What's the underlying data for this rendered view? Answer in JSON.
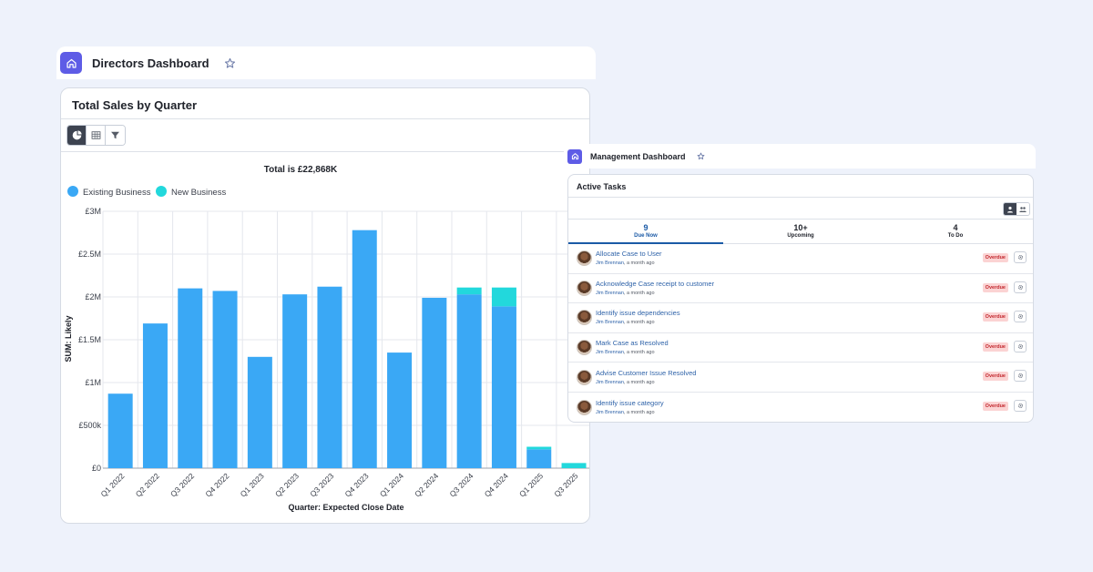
{
  "directors": {
    "title": "Directors Dashboard",
    "card_title": "Total Sales by Quarter",
    "total_text": "Total is £22,868K"
  },
  "management": {
    "title": "Management Dashboard",
    "card_title": "Active Tasks",
    "tabs": [
      {
        "count": "9",
        "label": "Due Now"
      },
      {
        "count": "10+",
        "label": "Upcoming"
      },
      {
        "count": "4",
        "label": "To Do"
      }
    ],
    "tasks": [
      {
        "name": "Allocate Case to User",
        "user": "Jim Brennan",
        "time": ", a month ago",
        "status": "Overdue"
      },
      {
        "name": "Acknowledge Case receipt to customer",
        "user": "Jim Brennan",
        "time": ", a month ago",
        "status": "Overdue"
      },
      {
        "name": "Identify issue dependencies",
        "user": "Jim Brennan",
        "time": ", a month ago",
        "status": "Overdue"
      },
      {
        "name": "Mark Case as Resolved",
        "user": "Jim Brennan",
        "time": ", a month ago",
        "status": "Overdue"
      },
      {
        "name": "Advise Customer Issue Resolved",
        "user": "Jim Brennan",
        "time": ", a month ago",
        "status": "Overdue"
      },
      {
        "name": "Identify issue category",
        "user": "Jim Brennan",
        "time": ", a month ago",
        "status": "Overdue"
      }
    ]
  },
  "colors": {
    "accent": "#5e5ce6",
    "existing_business": "#3aa8f5",
    "new_business": "#22d8dc",
    "overdue_bg": "#fbd3d3",
    "overdue_text": "#c2272d",
    "link": "#2f63a9"
  },
  "icons": [
    "home-icon",
    "star-icon",
    "pie-chart-icon",
    "table-icon",
    "filter-icon",
    "user-icon",
    "group-icon",
    "gear-icon"
  ],
  "chart_data": {
    "type": "bar",
    "stacked": true,
    "title": "Total is £22,868K",
    "xlabel": "Quarter: Expected Close Date",
    "ylabel": "SUM: Likely",
    "categories": [
      "Q1 2022",
      "Q2 2022",
      "Q3 2022",
      "Q4 2022",
      "Q1 2023",
      "Q2 2023",
      "Q3 2023",
      "Q4 2023",
      "Q1 2024",
      "Q2 2024",
      "Q3 2024",
      "Q4 2024",
      "Q1 2025",
      "Q3 2025"
    ],
    "series": [
      {
        "name": "Existing Business",
        "values": [
          870000,
          1690000,
          2100000,
          2070000,
          1300000,
          2030000,
          2120000,
          2780000,
          1350000,
          1990000,
          2030000,
          1890000,
          220000,
          0
        ]
      },
      {
        "name": "New Business",
        "values": [
          0,
          0,
          0,
          0,
          0,
          0,
          0,
          0,
          0,
          0,
          80000,
          220000,
          30000,
          60000
        ]
      }
    ],
    "yticks": [
      "£0",
      "£500k",
      "£1M",
      "£1.5M",
      "£2M",
      "£2.5M",
      "£3M"
    ],
    "ylim": [
      0,
      3000000
    ],
    "grid": true,
    "legend": "top-left"
  }
}
